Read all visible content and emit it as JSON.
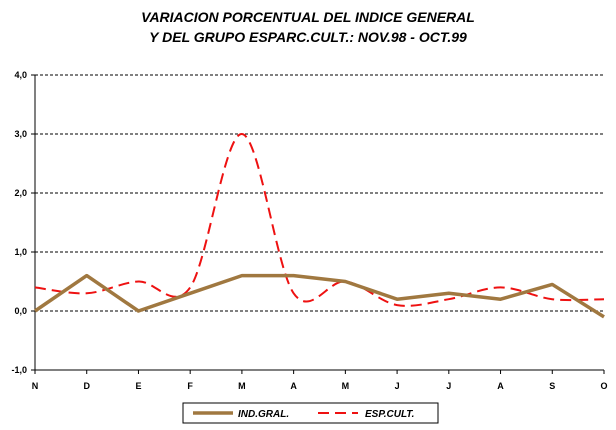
{
  "chart_data": {
    "type": "line",
    "title_line1": "VARIACION PORCENTUAL DEL INDICE GENERAL",
    "title_line2": "Y DEL GRUPO ESPARC.CULT.: NOV.98 - OCT.99",
    "categories": [
      "N",
      "D",
      "E",
      "F",
      "M",
      "A",
      "M",
      "J",
      "J",
      "A",
      "S",
      "O"
    ],
    "ylim": [
      -1.0,
      4.0
    ],
    "yticks": [
      "4,0",
      "3,0",
      "2,0",
      "1,0",
      "0,0",
      "-1,0"
    ],
    "grid": "horizontal-dashed",
    "legend_position": "bottom",
    "series": [
      {
        "name": "IND.GRAL.",
        "color": "#a07840",
        "style": "solid",
        "values": [
          0.0,
          0.6,
          0.0,
          0.3,
          0.6,
          0.6,
          0.5,
          0.2,
          0.3,
          0.2,
          0.45,
          -0.1
        ]
      },
      {
        "name": "ESP.CULT.",
        "color": "#ee1111",
        "style": "dashed",
        "values": [
          0.4,
          0.3,
          0.5,
          0.4,
          3.0,
          0.3,
          0.5,
          0.1,
          0.2,
          0.4,
          0.2,
          0.2
        ]
      }
    ]
  }
}
